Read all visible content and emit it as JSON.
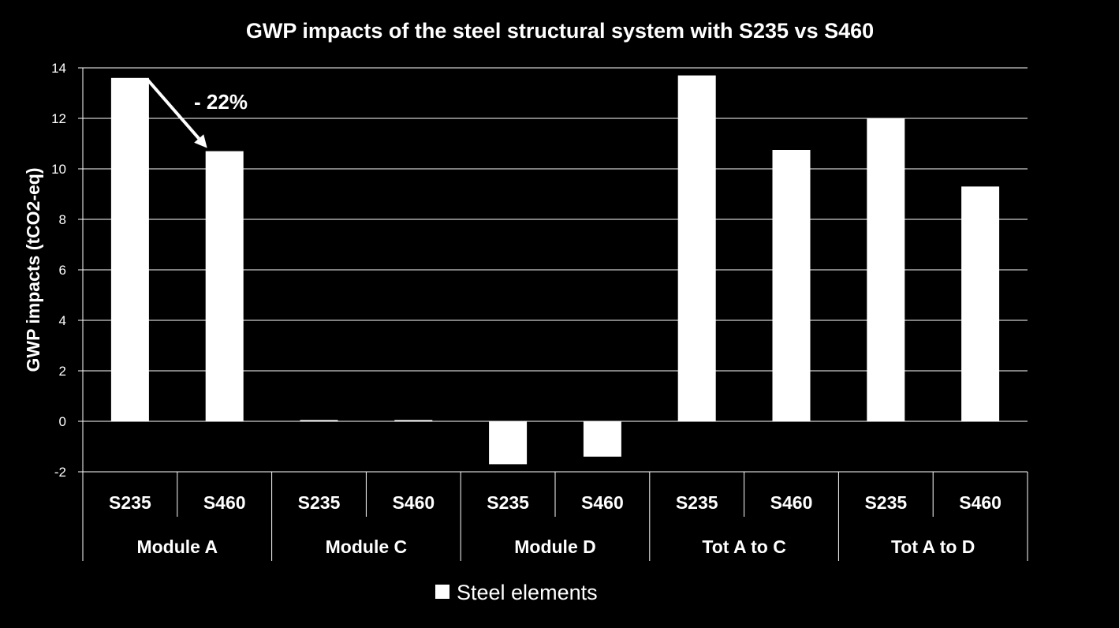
{
  "colors": {
    "background": "#000000",
    "foreground": "#ffffff",
    "bar": "#ffffff",
    "grid": "#ffffff"
  },
  "annotation": {
    "text": "- 22%",
    "from_bar": 0,
    "to_bar": 1
  },
  "chart_data": {
    "type": "bar",
    "title": "GWP impacts of the steel structural system with S235 vs S460",
    "xlabel": "",
    "ylabel": "GWP impacts (tCO2-eq)",
    "ylim": [
      -2,
      14
    ],
    "yticks": [
      -2,
      0,
      2,
      4,
      6,
      8,
      10,
      12,
      14
    ],
    "ytick_labels": [
      "-2",
      "0",
      "2",
      "4",
      "6",
      "8",
      "10",
      "12",
      "14"
    ],
    "grid": true,
    "legend_position": "bottom",
    "groups": [
      "Module A",
      "Module C",
      "Module D",
      "Tot A to C",
      "Tot A to D"
    ],
    "categories": [
      "S235",
      "S460",
      "S235",
      "S460",
      "S235",
      "S460",
      "S235",
      "S460",
      "S235",
      "S460"
    ],
    "series": [
      {
        "name": "Steel elements",
        "values": [
          13.6,
          10.7,
          0.05,
          0.05,
          -1.7,
          -1.4,
          13.7,
          10.75,
          12.0,
          9.3
        ]
      }
    ]
  }
}
